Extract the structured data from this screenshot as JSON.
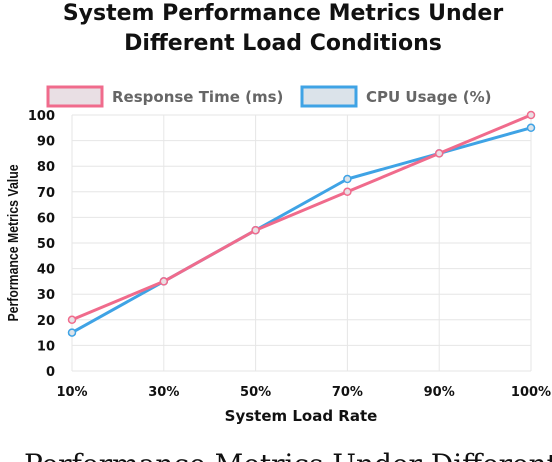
{
  "chart_data": {
    "type": "line",
    "title_lines": [
      "System Performance Metrics Under",
      "Different Load Conditions"
    ],
    "xlabel": "System Load Rate",
    "ylabel": "Performance Metrics Value",
    "categories": [
      "10%",
      "30%",
      "50%",
      "70%",
      "90%",
      "100%"
    ],
    "ylim": [
      0,
      100
    ],
    "yticks": [
      0,
      10,
      20,
      30,
      40,
      50,
      60,
      70,
      80,
      90,
      100
    ],
    "grid": true,
    "legend_position": "top",
    "series": [
      {
        "name": "Response Time (ms)",
        "values": [
          20,
          35,
          55,
          70,
          85,
          100
        ],
        "color": "#f06b8c",
        "fill": "#e9dfe4"
      },
      {
        "name": "CPU Usage (%)",
        "values": [
          15,
          35,
          55,
          75,
          85,
          95
        ],
        "color": "#3fa3e5",
        "fill": "#dbe3ea"
      }
    ]
  },
  "caption": "Performance Metrics Under Different Load"
}
